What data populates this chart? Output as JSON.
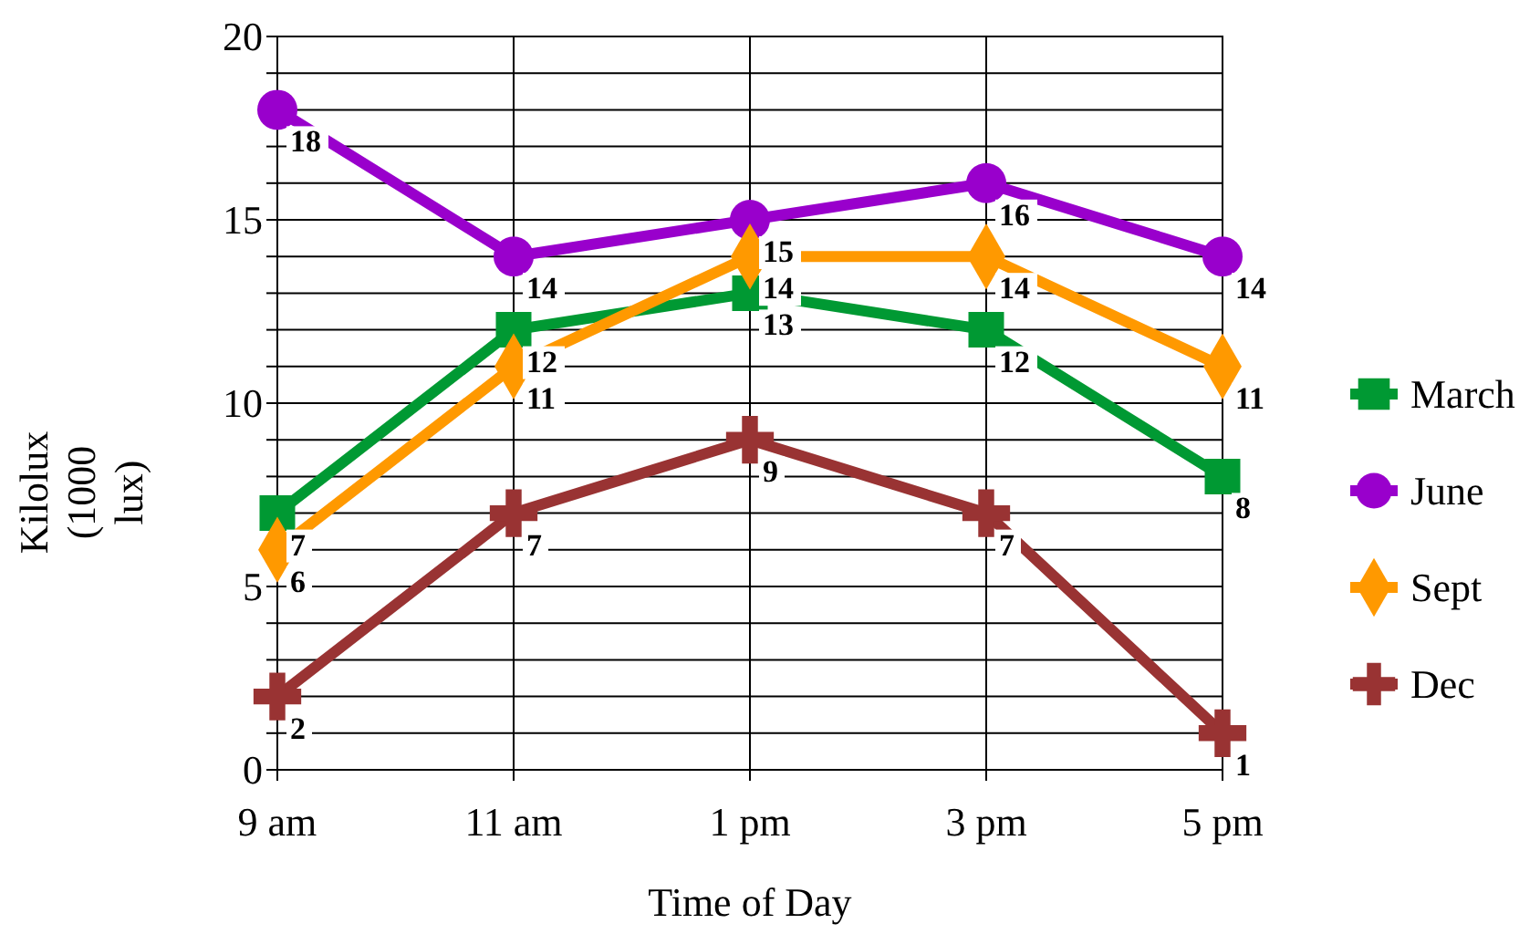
{
  "chart_data": {
    "type": "line",
    "xlabel": "Time of Day",
    "ylabel": "Kilolux (1000 lux)",
    "categories": [
      "9 am",
      "11 am",
      "1 pm",
      "3 pm",
      "5 pm"
    ],
    "series": [
      {
        "name": "March",
        "color": "#009933",
        "marker": "square",
        "values": [
          7,
          12,
          13,
          12,
          8
        ]
      },
      {
        "name": "June",
        "color": "#9900cc",
        "marker": "circle",
        "values": [
          18,
          14,
          15,
          16,
          14
        ]
      },
      {
        "name": "Sept",
        "color": "#ff9900",
        "marker": "diamond",
        "values": [
          6,
          11,
          14,
          14,
          11
        ]
      },
      {
        "name": "Dec",
        "color": "#993333",
        "marker": "cross",
        "values": [
          2,
          7,
          9,
          7,
          1
        ]
      }
    ],
    "ylim": [
      0,
      20
    ],
    "yticks": [
      0,
      {
        "value": 1,
        "label": null
      },
      {
        "value": 2,
        "label": null
      },
      {
        "value": 3,
        "label": null
      },
      {
        "value": 4,
        "label": null
      },
      5,
      {
        "value": 6,
        "label": null
      },
      {
        "value": 7,
        "label": null
      },
      {
        "value": 8,
        "label": null
      },
      {
        "value": 9,
        "label": null
      },
      10,
      {
        "value": 11,
        "label": null
      },
      {
        "value": 12,
        "label": null
      },
      {
        "value": 13,
        "label": null
      },
      {
        "value": 14,
        "label": null
      },
      15,
      {
        "value": 16,
        "label": null
      },
      {
        "value": 17,
        "label": null
      },
      {
        "value": 18,
        "label": null
      },
      {
        "value": 19,
        "label": null
      },
      20
    ],
    "grid": true,
    "legend": "right",
    "data_labels": true,
    "line_style": "solid"
  }
}
